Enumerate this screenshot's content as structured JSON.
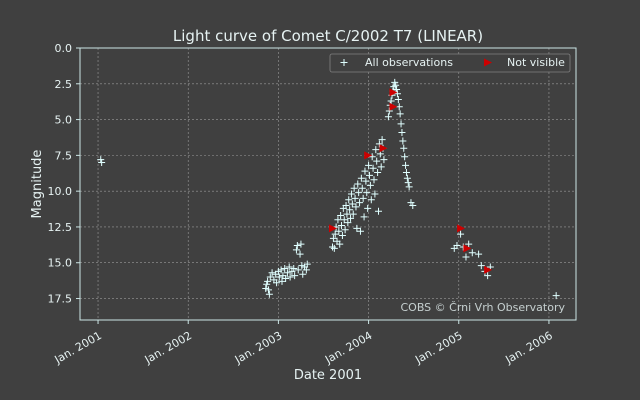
{
  "chart_data": {
    "type": "scatter",
    "title": "Light curve of Comet C/2002 T7 (LINEAR)",
    "xlabel": "Date 2001",
    "ylabel": "Magnitude",
    "x_unit": "year",
    "xlim": [
      2000.8,
      2006.3
    ],
    "ylim": [
      0.0,
      19.0
    ],
    "y_inverted": true,
    "grid": true,
    "legend_position": "top-right",
    "x_ticks": [
      {
        "value": 2001,
        "label": "Jan. 2001"
      },
      {
        "value": 2002,
        "label": "Jan. 2002"
      },
      {
        "value": 2003,
        "label": "Jan. 2003"
      },
      {
        "value": 2004,
        "label": "Jan. 2004"
      },
      {
        "value": 2005,
        "label": "Jan. 2005"
      },
      {
        "value": 2006,
        "label": "Jan. 2006"
      }
    ],
    "y_ticks": [
      {
        "value": 0.0,
        "label": "0.0"
      },
      {
        "value": 2.5,
        "label": "2.5"
      },
      {
        "value": 5.0,
        "label": "5.0"
      },
      {
        "value": 7.5,
        "label": "7.5"
      },
      {
        "value": 10.0,
        "label": "10.0"
      },
      {
        "value": 12.5,
        "label": "12.5"
      },
      {
        "value": 15.0,
        "label": "15.0"
      },
      {
        "value": 17.5,
        "label": "17.5"
      }
    ],
    "series": [
      {
        "name": "All observations",
        "marker": "plus",
        "color": "#e0ffff",
        "points": [
          [
            2001.03,
            7.8
          ],
          [
            2001.04,
            8.0
          ],
          [
            2002.86,
            16.8
          ],
          [
            2002.87,
            16.5
          ],
          [
            2002.88,
            16.3
          ],
          [
            2002.89,
            16.9
          ],
          [
            2002.9,
            17.2
          ],
          [
            2002.91,
            16.0
          ],
          [
            2002.93,
            15.7
          ],
          [
            2002.95,
            16.2
          ],
          [
            2002.97,
            15.8
          ],
          [
            2002.98,
            16.4
          ],
          [
            2003.0,
            15.6
          ],
          [
            2003.01,
            16.0
          ],
          [
            2003.03,
            15.5
          ],
          [
            2003.04,
            16.3
          ],
          [
            2003.05,
            15.9
          ],
          [
            2003.07,
            15.4
          ],
          [
            2003.08,
            16.1
          ],
          [
            2003.1,
            15.7
          ],
          [
            2003.12,
            15.3
          ],
          [
            2003.13,
            16.0
          ],
          [
            2003.15,
            15.6
          ],
          [
            2003.17,
            15.4
          ],
          [
            2003.18,
            15.9
          ],
          [
            2003.2,
            14.1
          ],
          [
            2003.21,
            13.8
          ],
          [
            2003.22,
            15.5
          ],
          [
            2003.24,
            14.4
          ],
          [
            2003.25,
            13.7
          ],
          [
            2003.26,
            15.2
          ],
          [
            2003.27,
            15.8
          ],
          [
            2003.29,
            15.3
          ],
          [
            2003.31,
            15.5
          ],
          [
            2003.32,
            15.1
          ],
          [
            2003.6,
            13.9
          ],
          [
            2003.61,
            13.3
          ],
          [
            2003.62,
            14.0
          ],
          [
            2003.63,
            13.0
          ],
          [
            2003.64,
            12.5
          ],
          [
            2003.65,
            13.5
          ],
          [
            2003.66,
            12.0
          ],
          [
            2003.67,
            12.8
          ],
          [
            2003.68,
            13.7
          ],
          [
            2003.69,
            11.7
          ],
          [
            2003.7,
            12.4
          ],
          [
            2003.71,
            13.1
          ],
          [
            2003.72,
            11.2
          ],
          [
            2003.73,
            12.0
          ],
          [
            2003.74,
            12.7
          ],
          [
            2003.75,
            11.0
          ],
          [
            2003.76,
            11.6
          ],
          [
            2003.77,
            12.2
          ],
          [
            2003.78,
            10.6
          ],
          [
            2003.79,
            11.3
          ],
          [
            2003.8,
            11.9
          ],
          [
            2003.81,
            10.2
          ],
          [
            2003.82,
            10.9
          ],
          [
            2003.83,
            11.6
          ],
          [
            2003.84,
            9.8
          ],
          [
            2003.85,
            10.5
          ],
          [
            2003.86,
            11.1
          ],
          [
            2003.87,
            12.6
          ],
          [
            2003.88,
            9.5
          ],
          [
            2003.89,
            10.1
          ],
          [
            2003.9,
            10.8
          ],
          [
            2003.91,
            12.8
          ],
          [
            2003.92,
            9.1
          ],
          [
            2003.93,
            9.8
          ],
          [
            2003.94,
            10.5
          ],
          [
            2003.95,
            11.8
          ],
          [
            2003.96,
            8.6
          ],
          [
            2003.97,
            9.3
          ],
          [
            2003.98,
            10.1
          ],
          [
            2003.99,
            11.2
          ],
          [
            2004.0,
            8.2
          ],
          [
            2004.01,
            8.9
          ],
          [
            2004.02,
            9.6
          ],
          [
            2004.03,
            10.6
          ],
          [
            2004.04,
            7.6
          ],
          [
            2004.05,
            8.4
          ],
          [
            2004.06,
            9.2
          ],
          [
            2004.07,
            10.2
          ],
          [
            2004.08,
            7.1
          ],
          [
            2004.09,
            7.9
          ],
          [
            2004.1,
            8.7
          ],
          [
            2004.11,
            11.4
          ],
          [
            2004.12,
            6.7
          ],
          [
            2004.13,
            7.4
          ],
          [
            2004.14,
            8.3
          ],
          [
            2004.15,
            6.4
          ],
          [
            2004.16,
            7.0
          ],
          [
            2004.17,
            7.8
          ],
          [
            2004.22,
            4.8
          ],
          [
            2004.23,
            4.4
          ],
          [
            2004.24,
            4.0
          ],
          [
            2004.25,
            3.7
          ],
          [
            2004.26,
            3.3
          ],
          [
            2004.27,
            3.0
          ],
          [
            2004.28,
            2.7
          ],
          [
            2004.29,
            2.4
          ],
          [
            2004.3,
            2.6
          ],
          [
            2004.31,
            2.9
          ],
          [
            2004.32,
            3.2
          ],
          [
            2004.33,
            3.6
          ],
          [
            2004.34,
            4.1
          ],
          [
            2004.35,
            4.6
          ],
          [
            2004.36,
            5.3
          ],
          [
            2004.37,
            5.9
          ],
          [
            2004.38,
            6.5
          ],
          [
            2004.39,
            7.0
          ],
          [
            2004.4,
            7.6
          ],
          [
            2004.41,
            8.2
          ],
          [
            2004.42,
            8.7
          ],
          [
            2004.43,
            9.1
          ],
          [
            2004.44,
            9.4
          ],
          [
            2004.45,
            9.7
          ],
          [
            2004.47,
            10.8
          ],
          [
            2004.49,
            11.0
          ],
          [
            2004.95,
            14.0
          ],
          [
            2004.98,
            13.8
          ],
          [
            2005.02,
            13.0
          ],
          [
            2005.05,
            13.9
          ],
          [
            2005.08,
            14.6
          ],
          [
            2005.11,
            13.7
          ],
          [
            2005.15,
            14.3
          ],
          [
            2005.22,
            14.4
          ],
          [
            2005.25,
            15.2
          ],
          [
            2005.29,
            15.6
          ],
          [
            2005.32,
            15.9
          ],
          [
            2005.35,
            15.3
          ],
          [
            2006.08,
            17.3
          ]
        ]
      },
      {
        "name": "Not visible",
        "marker": "triangle-right",
        "color": "#cc0000",
        "points": [
          [
            2003.6,
            12.6
          ],
          [
            2003.99,
            7.5
          ],
          [
            2004.16,
            7.0
          ],
          [
            2004.27,
            3.1
          ],
          [
            2004.27,
            4.1
          ],
          [
            2005.02,
            12.6
          ],
          [
            2005.09,
            14.0
          ],
          [
            2005.32,
            15.5
          ]
        ]
      }
    ],
    "annotations": [
      "COBS © Črni Vrh Observatory"
    ]
  }
}
